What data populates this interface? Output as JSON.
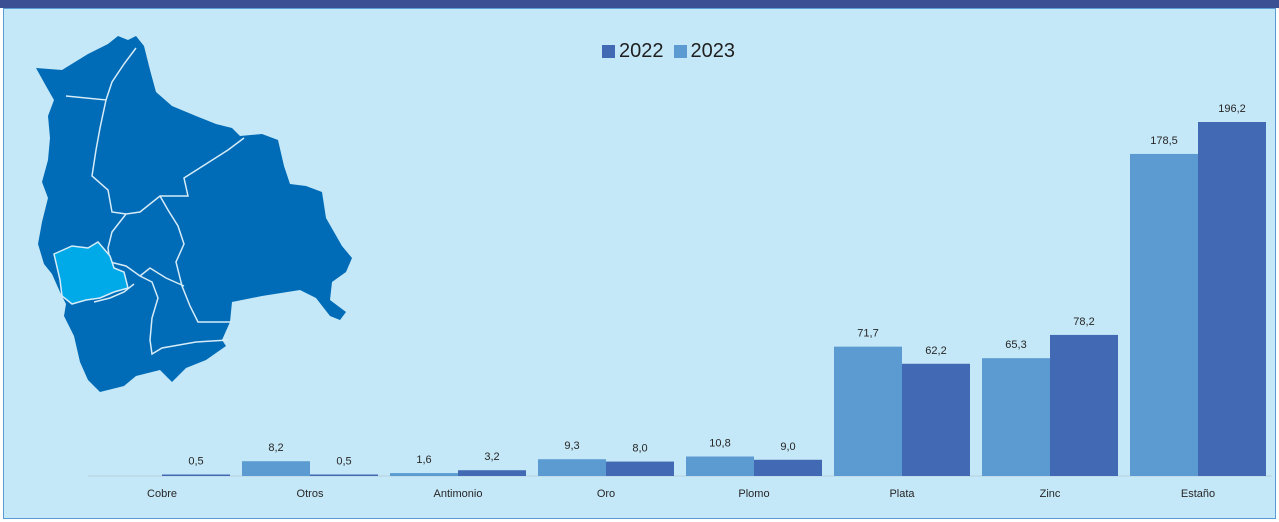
{
  "colors": {
    "series_2022": "#4169b4",
    "series_2023": "#5b9bd1",
    "panel_bg": "#c5e8f8",
    "header_bar": "#3b4f94",
    "map_fill": "#006bb6",
    "map_highlight": "#00aae8",
    "map_border": "#d6ecf8"
  },
  "map": {
    "icon": "bolivia-map",
    "highlighted_region": "Oruro"
  },
  "chart_data": {
    "type": "bar",
    "categories": [
      "Cobre",
      "Otros",
      "Antimonio",
      "Oro",
      "Plomo",
      "Plata",
      "Zinc",
      "Estaño"
    ],
    "series": [
      {
        "name": "2023",
        "values": [
          null,
          8.2,
          1.6,
          9.3,
          10.8,
          71.7,
          65.3,
          178.5
        ]
      },
      {
        "name": "2022",
        "values": [
          0.5,
          0.5,
          3.2,
          8.0,
          9.0,
          62.2,
          78.2,
          196.2
        ]
      }
    ],
    "labels": [
      [
        "",
        "8,2",
        "1,6",
        "9,3",
        "10,8",
        "71,7",
        "65,3",
        "178,5"
      ],
      [
        "0,5",
        "0,5",
        "3,2",
        "8,0",
        "9,0",
        "62,2",
        "78,2",
        "196,2"
      ]
    ],
    "legend": [
      "2022",
      "2023"
    ],
    "legend_position": "top-center",
    "ylim": [
      0,
      200
    ],
    "grid": false,
    "y_axis_visible": false
  }
}
